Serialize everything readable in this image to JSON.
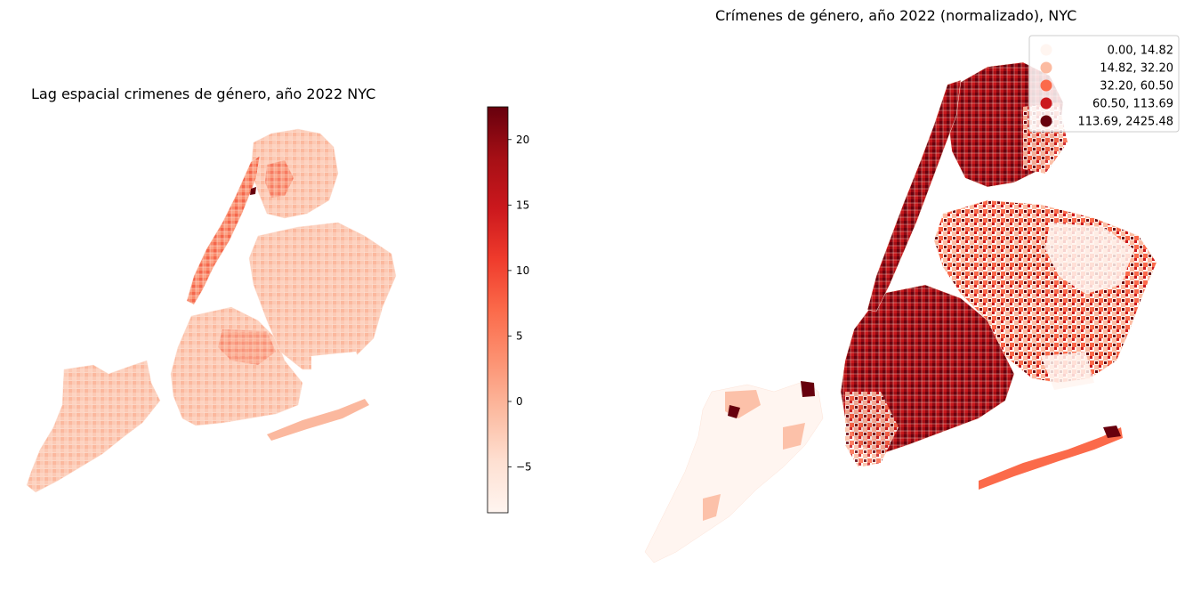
{
  "left_panel": {
    "title": "Lag espacial crimenes de género, año 2022  NYC",
    "colorbar": {
      "cmap": "Reds",
      "vmin": -8.5,
      "vmax": 22.5,
      "ticks": [
        {
          "value": 20,
          "label": "20"
        },
        {
          "value": 15,
          "label": "15"
        },
        {
          "value": 10,
          "label": "10"
        },
        {
          "value": 5,
          "label": "5"
        },
        {
          "value": 0,
          "label": "0"
        },
        {
          "value": -5,
          "label": "−5"
        }
      ]
    }
  },
  "right_panel": {
    "title": "Crímenes de género, año 2022 (normalizado), NYC",
    "legend": [
      {
        "label": "0.00,   14.82",
        "color": "#fff5f0"
      },
      {
        "label": "14.82,   32.20",
        "color": "#fcbba1"
      },
      {
        "label": "32.20,   60.50",
        "color": "#fb6a4a"
      },
      {
        "label": "60.50,  113.69",
        "color": "#cb181d"
      },
      {
        "label": "113.69, 2425.48",
        "color": "#67000d"
      }
    ]
  }
}
